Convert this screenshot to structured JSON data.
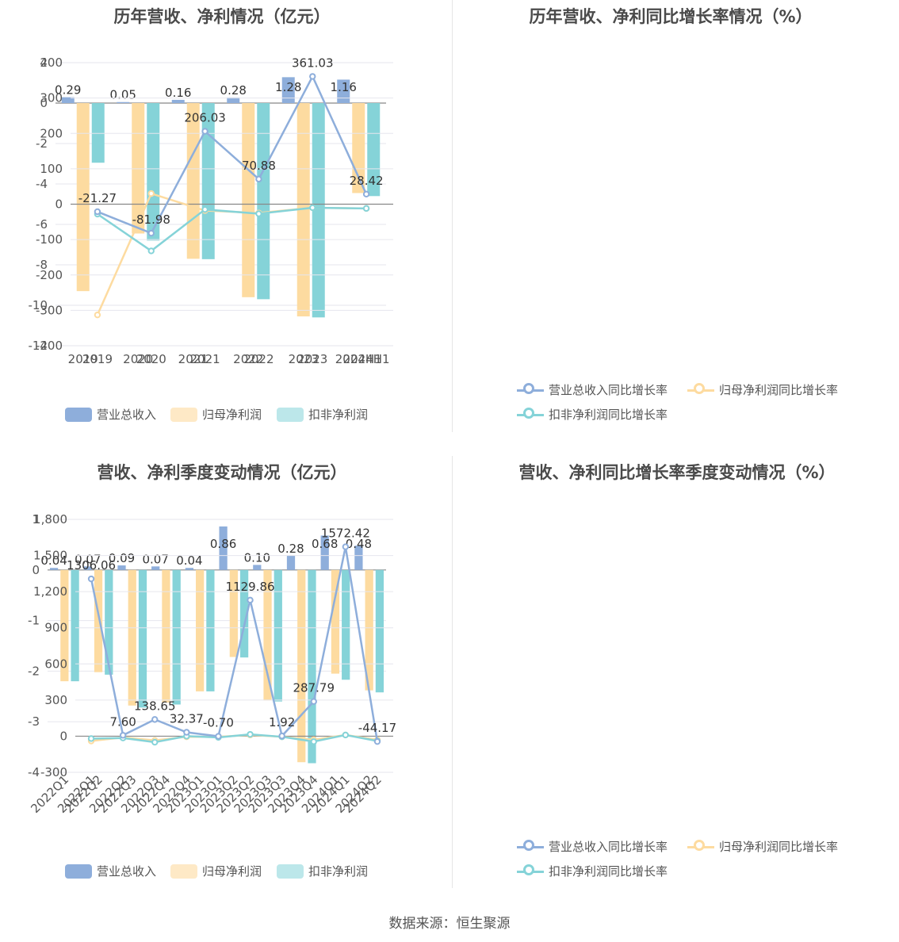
{
  "source": "数据来源：恒生聚源",
  "colors": {
    "revenue": "#8eaedb",
    "net": "#fddba0",
    "deducted": "#85d3d8",
    "grid": "#e6e6ee",
    "axis": "#999999",
    "text": "#555555"
  },
  "chart_data": [
    {
      "id": "annual_bar",
      "type": "bar",
      "title": "历年营收、净利情况（亿元）",
      "categories": [
        "2019",
        "2020",
        "2021",
        "2022",
        "2023",
        "2024H1"
      ],
      "yticks": [
        "2",
        "0",
        "-2",
        "-4",
        "-6",
        "-8",
        "-10",
        "-12"
      ],
      "ylim": [
        -12,
        2
      ],
      "series": [
        {
          "name": "营业总收入",
          "values": [
            0.29,
            0.05,
            0.16,
            0.28,
            1.28,
            1.16
          ],
          "labels": [
            "0.29",
            "0.05",
            "0.16",
            "0.28",
            "1.28",
            "1.16"
          ]
        },
        {
          "name": "归母净利润",
          "values": [
            -9.3,
            -6.45,
            -7.7,
            -9.6,
            -10.55,
            -4.45
          ]
        },
        {
          "name": "扣非净利润",
          "values": [
            -2.95,
            -6.8,
            -7.72,
            -9.7,
            -10.6,
            -4.6
          ]
        }
      ],
      "legend_position": "bottom"
    },
    {
      "id": "annual_line",
      "type": "line",
      "title": "历年营收、净利同比增长率情况（%）",
      "categories": [
        "2019",
        "2020",
        "2021",
        "2022",
        "2023",
        "2024H1"
      ],
      "yticks": [
        "400",
        "300",
        "200",
        "100",
        "0",
        "-100",
        "-200",
        "-300",
        "-400"
      ],
      "ylim": [
        -400,
        400
      ],
      "series": [
        {
          "name": "营业总收入同比增长率",
          "values": [
            -21.27,
            -81.98,
            206.03,
            70.88,
            361.03,
            28.42
          ],
          "labels": [
            "-21.27",
            "-81.98",
            "206.03",
            "70.88",
            "361.03",
            "28.42"
          ]
        },
        {
          "name": "归母净利润同比增长率",
          "values": [
            -313,
            30,
            -18,
            -25,
            -10,
            -12
          ]
        },
        {
          "name": "扣非净利润同比增长率",
          "values": [
            -28,
            -132,
            -15,
            -27,
            -10,
            -12
          ]
        }
      ],
      "legend_position": "bottom"
    },
    {
      "id": "quarter_bar",
      "type": "bar",
      "title": "营收、净利季度变动情况（亿元）",
      "categories": [
        "2022Q1",
        "2022Q2",
        "2022Q3",
        "2022Q4",
        "2023Q1",
        "2023Q2",
        "2023Q3",
        "2023Q4",
        "2024Q1",
        "2024Q2"
      ],
      "yticks": [
        "1",
        "0",
        "-1",
        "-2",
        "-3",
        "-4"
      ],
      "ylim": [
        -4,
        1
      ],
      "series": [
        {
          "name": "营业总收入",
          "values": [
            0.04,
            0.07,
            0.09,
            0.07,
            0.04,
            0.86,
            0.1,
            0.28,
            0.68,
            0.48
          ],
          "labels": [
            "0.04",
            "0.07",
            "0.09",
            "0.07",
            "0.04",
            "0.86",
            "0.10",
            "0.28",
            "0.68",
            "0.48"
          ]
        },
        {
          "name": "归母净利润",
          "values": [
            -2.2,
            -2.02,
            -2.68,
            -2.62,
            -2.4,
            -1.72,
            -2.58,
            -3.8,
            -2.05,
            -2.38
          ]
        },
        {
          "name": "扣非净利润",
          "values": [
            -2.2,
            -2.07,
            -2.72,
            -2.66,
            -2.4,
            -1.73,
            -2.6,
            -3.82,
            -2.17,
            -2.42
          ]
        }
      ],
      "legend_position": "bottom"
    },
    {
      "id": "quarter_line",
      "type": "line",
      "title": "营收、净利同比增长率季度变动情况（%）",
      "categories": [
        "2022Q1",
        "2022Q2",
        "2022Q3",
        "2022Q4",
        "2023Q1",
        "2023Q2",
        "2023Q3",
        "2023Q4",
        "2024Q1",
        "2024Q2"
      ],
      "yticks": [
        "1,800",
        "1,500",
        "1,200",
        "900",
        "600",
        "300",
        "0",
        "-300"
      ],
      "ylim": [
        -300,
        1800
      ],
      "series": [
        {
          "name": "营业总收入同比增长率",
          "values": [
            1306.06,
            7.6,
            138.65,
            32.37,
            -0.7,
            1129.86,
            1.92,
            287.79,
            1572.42,
            -44.17
          ],
          "labels": [
            "1306.06",
            "7.60",
            "138.65",
            "32.37",
            "-0.70",
            "1129.86",
            "1.92",
            "287.79",
            "1572.42",
            "-44.17"
          ]
        },
        {
          "name": "归母净利润同比增长率",
          "values": [
            -40,
            -10,
            -35,
            -5,
            -5,
            10,
            -5,
            -30,
            10,
            -30
          ]
        },
        {
          "name": "扣非净利润同比增长率",
          "values": [
            -20,
            -15,
            -50,
            0,
            -10,
            15,
            -5,
            -45,
            10,
            -40
          ]
        }
      ],
      "legend_position": "bottom"
    }
  ]
}
